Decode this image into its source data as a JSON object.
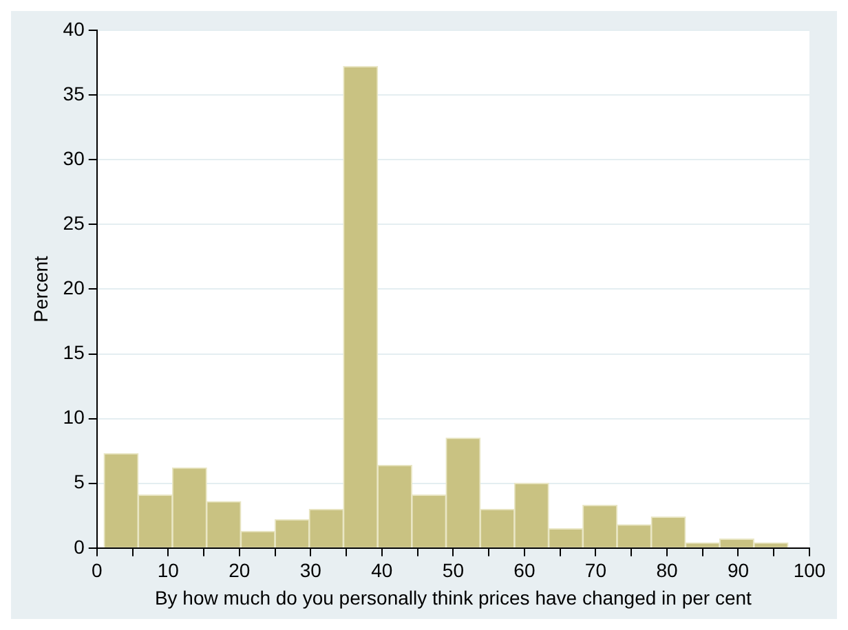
{
  "chart_data": {
    "type": "histogram",
    "xlabel": "By how much do you personally think prices have changed in per cent",
    "ylabel": "Percent",
    "bins": [
      1,
      5.8,
      10.6,
      15.4,
      20.2,
      25,
      29.8,
      34.6,
      39.4,
      44.2,
      49,
      53.8,
      58.6,
      63.4,
      68.2,
      73,
      77.8,
      82.6,
      87.4,
      92.2,
      97
    ],
    "values": [
      7.3,
      4.1,
      6.2,
      3.6,
      1.3,
      2.2,
      3.0,
      37.2,
      6.4,
      4.1,
      8.5,
      3.0,
      5.0,
      1.5,
      3.3,
      1.8,
      2.4,
      0.4,
      0.7,
      0.4
    ],
    "color": "#c9c282",
    "xlim": [
      0,
      100
    ],
    "xticks": [
      0,
      {
        "value": 5,
        "label": null
      },
      10,
      {
        "value": 15,
        "label": null
      },
      20,
      {
        "value": 25,
        "label": null
      },
      30,
      {
        "value": 35,
        "label": null
      },
      40,
      {
        "value": 45,
        "label": null
      },
      50,
      {
        "value": 55,
        "label": null
      },
      60,
      {
        "value": 65,
        "label": null
      },
      70,
      {
        "value": 75,
        "label": null
      },
      80,
      {
        "value": 85,
        "label": null
      },
      90,
      {
        "value": 95,
        "label": null
      },
      100
    ],
    "ylim": [
      0,
      40
    ],
    "yticks": [
      0,
      5,
      10,
      15,
      20,
      25,
      30,
      35,
      40
    ],
    "grid": "y",
    "legend": false
  }
}
